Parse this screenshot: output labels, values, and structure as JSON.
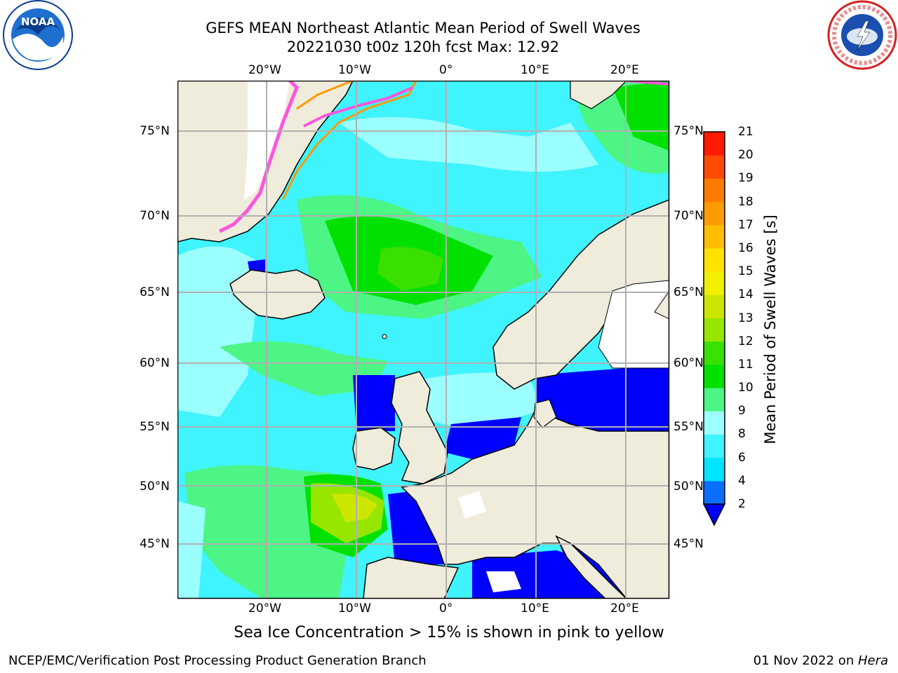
{
  "title": {
    "line1": "GEFS MEAN Northeast Atlantic Mean Period of Swell Waves",
    "line2": "20221030 t00z 120h fcst   Max: 12.92"
  },
  "logos": {
    "left": {
      "name": "noaa-logo",
      "text": "NOAA"
    },
    "right": {
      "name": "nws-logo",
      "text": "NATIONAL WEATHER SERVICE"
    }
  },
  "map": {
    "lon_ticks_top": [
      "20°W",
      "10°W",
      "0°",
      "10°E",
      "20°E"
    ],
    "lon_ticks_bottom": [
      "20°W",
      "10°W",
      "0°",
      "10°E",
      "20°E"
    ],
    "lat_ticks_left": [
      "75°N",
      "70°N",
      "65°N",
      "60°N",
      "55°N",
      "50°N",
      "45°N"
    ],
    "lat_ticks_right": [
      "75°N",
      "70°N",
      "65°N",
      "60°N",
      "55°N",
      "50°N",
      "45°N"
    ],
    "colors": {
      "land": "#efecdc",
      "grid": "#b0b0b0",
      "coast": "#000000",
      "ice_edge": "#ff55dd"
    }
  },
  "colorbar": {
    "label": "Mean Period of Swell Waves [s]",
    "ticks": [
      "2",
      "4",
      "6",
      "8",
      "9",
      "10",
      "11",
      "12",
      "13",
      "14",
      "15",
      "16",
      "17",
      "18",
      "19",
      "20",
      "21"
    ],
    "colors": [
      "#0000ff",
      "#0a6eff",
      "#00e5ff",
      "#3ff3ff",
      "#9cffff",
      "#4cf584",
      "#00e100",
      "#39e000",
      "#96e600",
      "#cde600",
      "#f0f000",
      "#ffe200",
      "#ffbd00",
      "#ff9a00",
      "#ff7a00",
      "#ff4a00",
      "#ff1a00"
    ]
  },
  "caption": "Sea Ice Concentration > 15% is shown in pink to yellow",
  "footer": {
    "left": "NCEP/EMC/Verification Post Processing Product Generation Branch",
    "right_date": "01 Nov 2022 on ",
    "right_host": "Hera"
  }
}
